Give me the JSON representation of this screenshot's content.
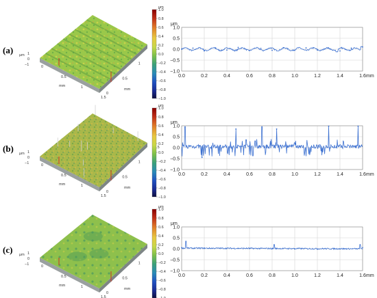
{
  "panels": [
    {
      "label": "(a)"
    },
    {
      "label": "(b)"
    },
    {
      "label": "(c)"
    }
  ],
  "surface_3d": {
    "z_label": "μm",
    "z_ticks": [
      "1",
      "0",
      "−1"
    ],
    "axis_unit": "mm",
    "x_ticks": [
      "0",
      "0.5",
      "1",
      "1.5"
    ],
    "y_ticks": [
      "0",
      "0.5",
      "1",
      "1.5"
    ]
  },
  "colorbar": {
    "unit": "μm",
    "ticks": [
      "1.0",
      "0.8",
      "0.6",
      "0.4",
      "0.2",
      "0.0",
      "−0.2",
      "−0.4",
      "−0.6",
      "−0.8",
      "−1.0"
    ],
    "colors": [
      "#8a0000",
      "#c03018",
      "#e07a28",
      "#e8c840",
      "#c8d848",
      "#7cc04a",
      "#3aa07a",
      "#2a8ab8",
      "#2050c0",
      "#1a2a90",
      "#101040"
    ]
  },
  "colors": {
    "profile_line": "#3a6fd0",
    "grid": "#cccccc"
  },
  "chart_data": [
    {
      "type": "line",
      "panel": "(a)",
      "ylabel": "μm",
      "xlabel": "mm",
      "xlim": [
        0,
        1.6
      ],
      "ylim": [
        -1.0,
        1.0
      ],
      "x_ticks": [
        "0.0",
        "0.2",
        "0.4",
        "0.6",
        "0.8",
        "1.0",
        "1.2",
        "1.4",
        "1.6"
      ],
      "y_ticks": [
        "1.0",
        "0.5",
        "0.0",
        "−0.5",
        "−1.0"
      ],
      "grid": true,
      "profile": "wavy",
      "series": [
        {
          "x": [
            0,
            0.1,
            0.2,
            0.3,
            0.4,
            0.5,
            0.6,
            0.7,
            0.8,
            0.9,
            1.0,
            1.1,
            1.2,
            1.3,
            1.4,
            1.5,
            1.6
          ],
          "y": [
            0.0,
            0.05,
            -0.08,
            0.06,
            -0.04,
            0.08,
            -0.06,
            0.04,
            -0.05,
            0.07,
            -0.05,
            0.06,
            -0.04,
            0.05,
            -0.08,
            0.05,
            0.1
          ]
        }
      ]
    },
    {
      "type": "line",
      "panel": "(b)",
      "ylabel": "μm",
      "xlabel": "mm",
      "xlim": [
        0,
        1.6
      ],
      "ylim": [
        -1.0,
        1.0
      ],
      "x_ticks": [
        "0.0",
        "0.2",
        "0.4",
        "0.6",
        "0.8",
        "1.0",
        "1.2",
        "1.4",
        "1.6"
      ],
      "y_ticks": [
        "1.0",
        "0.5",
        "0.0",
        "−0.5",
        "−1.0"
      ],
      "grid": true,
      "profile": "spiky",
      "series": [
        {
          "x": [
            0.03,
            0.18,
            0.48,
            0.57,
            0.65,
            0.71,
            0.84,
            1.3,
            1.56
          ],
          "y": [
            0.95,
            -0.45,
            0.85,
            0.35,
            0.3,
            0.95,
            0.85,
            0.98,
            0.98
          ]
        }
      ]
    },
    {
      "type": "line",
      "panel": "(c)",
      "ylabel": "μm",
      "xlabel": "mm",
      "xlim": [
        0,
        1.6
      ],
      "ylim": [
        -1.0,
        1.0
      ],
      "x_ticks": [
        "0.0",
        "0.2",
        "0.4",
        "0.6",
        "0.8",
        "1.0",
        "1.2",
        "1.4",
        "1.6"
      ],
      "y_ticks": [
        "1.0",
        "0.5",
        "0.0",
        "−0.5",
        "−1.0"
      ],
      "grid": true,
      "profile": "flat",
      "series": [
        {
          "x": [
            0,
            0.2,
            0.4,
            0.6,
            0.8,
            1.0,
            1.2,
            1.4,
            1.6
          ],
          "y": [
            0.05,
            0.03,
            0.02,
            0.01,
            0.0,
            -0.01,
            -0.02,
            0.0,
            0.05
          ]
        }
      ]
    }
  ]
}
